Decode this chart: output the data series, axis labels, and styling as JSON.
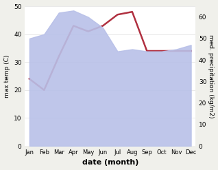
{
  "months": [
    "Jan",
    "Feb",
    "Mar",
    "Apr",
    "May",
    "Jun",
    "Jul",
    "Aug",
    "Sep",
    "Oct",
    "Nov",
    "Dec"
  ],
  "max_temp": [
    24,
    20,
    32,
    43,
    41,
    43,
    47,
    48,
    34,
    34,
    34,
    34
  ],
  "precipitation": [
    50,
    52,
    62,
    63,
    60,
    55,
    44,
    45,
    44,
    44,
    45,
    47
  ],
  "temp_ylim": [
    0,
    50
  ],
  "precip_ylim": [
    0,
    65
  ],
  "temp_color": "#b03040",
  "precip_fill_color": "#b8c0e8",
  "title": "",
  "xlabel": "date (month)",
  "ylabel_left": "max temp (C)",
  "ylabel_right": "med. precipitation (kg/m2)",
  "bg_color": "#ffffff",
  "fig_bg_color": "#f0f0eb"
}
